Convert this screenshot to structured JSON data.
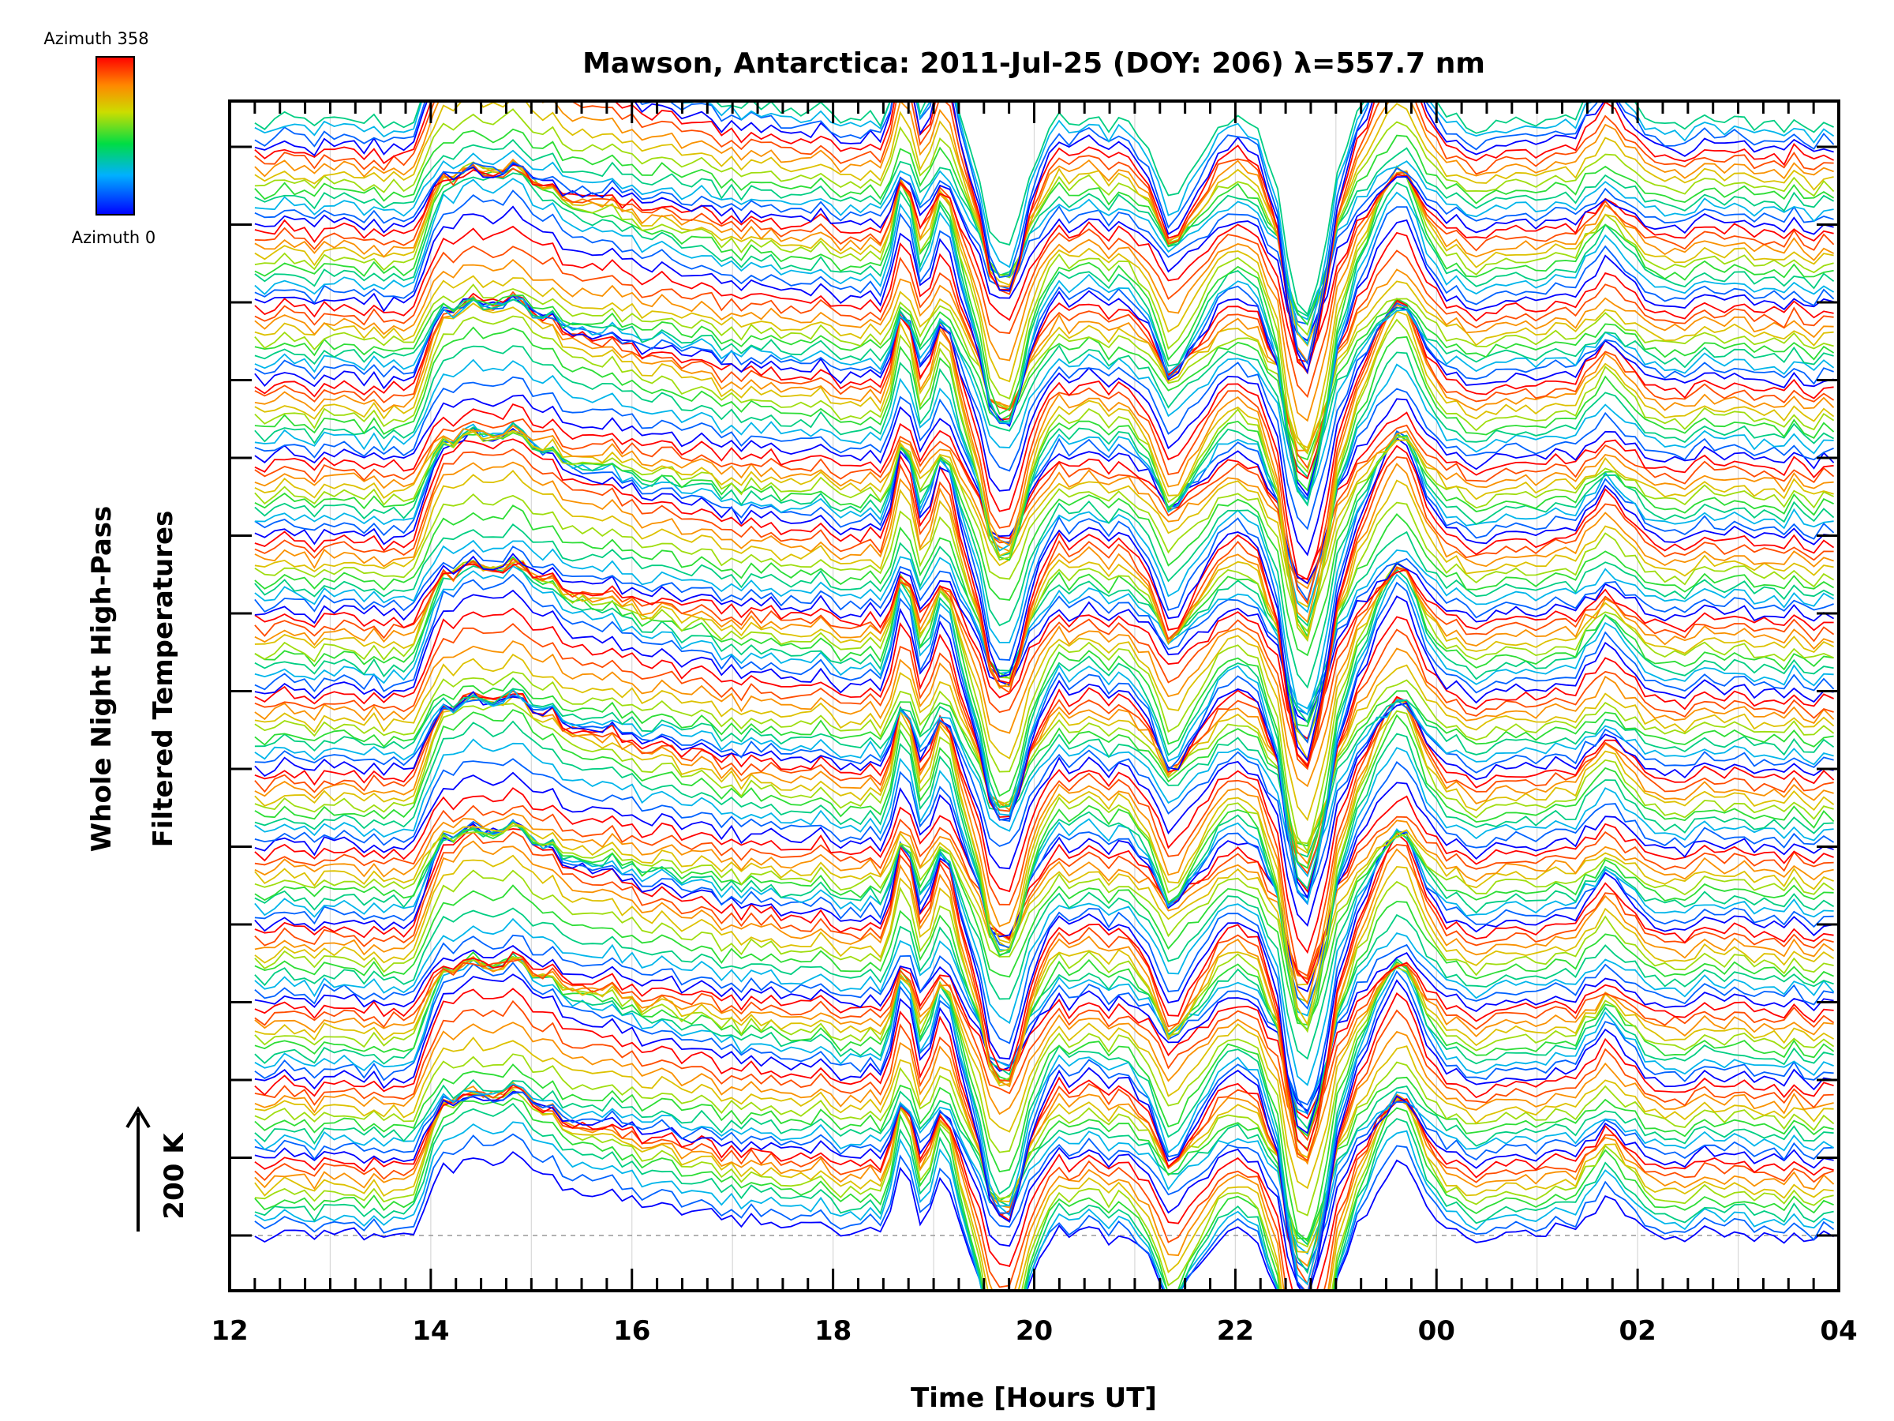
{
  "chart_data": {
    "type": "line",
    "title": "Mawson, Antarctica: 2011-Jul-25 (DOY: 206) λ=557.7 nm",
    "xlabel": "Time [Hours UT]",
    "ylabel_line1": "Whole Night High-Pass",
    "ylabel_line2": "Filtered Temperatures",
    "scale_label": "200 K",
    "x_ticks": [
      "12",
      "14",
      "16",
      "18",
      "20",
      "22",
      "00",
      "02",
      "04"
    ],
    "xlim": [
      12,
      28
    ],
    "colorbar": {
      "top_label": "Azimuth 358",
      "bottom_label": "Azimuth 0",
      "colors": [
        "#0000ff",
        "#00b0ff",
        "#00dd44",
        "#ccdd00",
        "#ff8800",
        "#ff0000"
      ]
    },
    "series_count": 144,
    "samples_per_series": 160,
    "offset_per_series_K": 30,
    "features": [
      {
        "time_ut": 14.0,
        "shape": "rising step",
        "amplitude_K": 150
      },
      {
        "time_ut": 18.7,
        "shape": "sharp spike",
        "amplitude_K": 130
      },
      {
        "time_ut": 19.1,
        "shape": "sharp spike",
        "amplitude_K": 110
      },
      {
        "time_ut": 19.7,
        "shape": "trough",
        "amplitude_K": -220
      },
      {
        "time_ut": 21.4,
        "shape": "dip",
        "amplitude_K": -130
      },
      {
        "time_ut": 22.7,
        "shape": "deep trough",
        "amplitude_K": -330
      },
      {
        "time_ut": 23.6,
        "shape": "peak",
        "amplitude_K": 150
      },
      {
        "time_ut": 25.7,
        "shape": "peak",
        "amplitude_K": 70
      }
    ]
  }
}
